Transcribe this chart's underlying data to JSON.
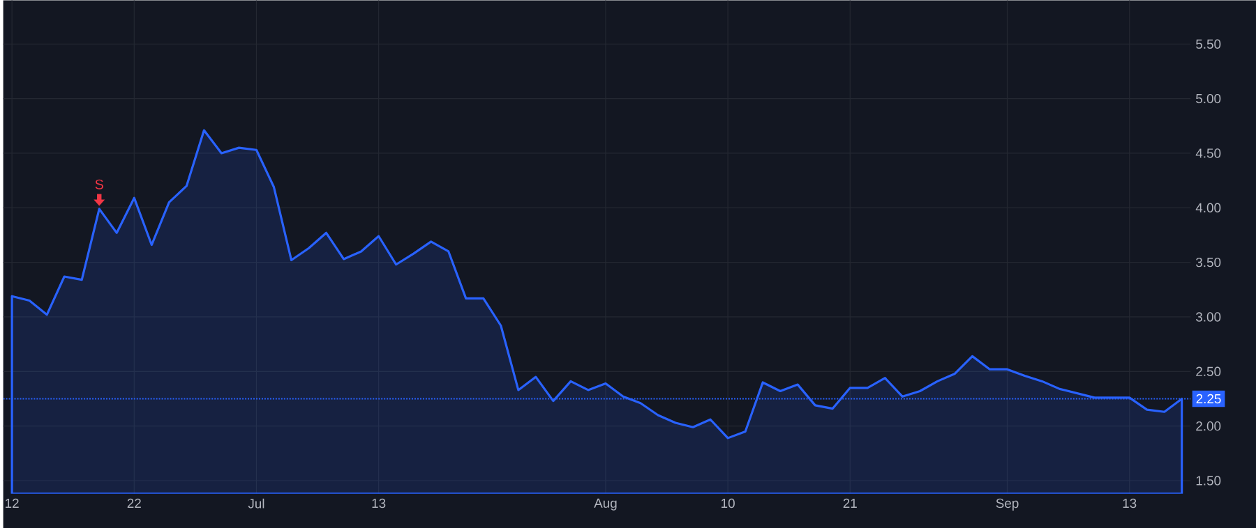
{
  "chart_data": {
    "type": "area",
    "categories": [
      "12",
      null,
      null,
      null,
      null,
      null,
      null,
      "22",
      null,
      null,
      null,
      null,
      null,
      null,
      "Jul",
      null,
      null,
      null,
      null,
      null,
      null,
      "13",
      null,
      null,
      null,
      null,
      null,
      null,
      null,
      null,
      null,
      null,
      null,
      null,
      "Aug",
      null,
      null,
      null,
      null,
      null,
      null,
      "10",
      null,
      null,
      null,
      null,
      null,
      null,
      "21",
      null,
      null,
      null,
      null,
      null,
      null,
      null,
      null,
      "Sep",
      null,
      null,
      null,
      null,
      null,
      null,
      "13",
      null,
      null,
      null
    ],
    "series": [
      {
        "color": "#2962ff",
        "values": [
          3.19,
          3.15,
          3.02,
          3.37,
          3.34,
          3.99,
          3.77,
          4.09,
          3.66,
          4.05,
          4.2,
          4.71,
          4.5,
          4.55,
          4.53,
          4.19,
          3.52,
          3.63,
          3.77,
          3.53,
          3.6,
          3.74,
          3.48,
          3.58,
          3.69,
          3.6,
          3.17,
          3.17,
          2.92,
          2.33,
          2.45,
          2.23,
          2.41,
          2.33,
          2.39,
          2.27,
          2.21,
          2.1,
          2.03,
          1.99,
          2.06,
          1.89,
          1.95,
          2.4,
          2.32,
          2.38,
          2.19,
          2.16,
          2.35,
          2.35,
          2.44,
          2.27,
          2.32,
          2.41,
          2.48,
          2.64,
          2.52,
          2.52,
          2.46,
          2.41,
          2.34,
          2.3,
          2.26,
          2.26,
          2.26,
          2.15,
          2.13,
          2.25
        ]
      }
    ],
    "ylim": [
      1.38,
      5.9
    ],
    "yticks": [
      {
        "value": 1.5,
        "label": "1.50"
      },
      {
        "value": 2,
        "label": "2.00"
      },
      {
        "value": 2.5,
        "label": "2.50"
      },
      {
        "value": 3,
        "label": "3.00"
      },
      {
        "value": 3.5,
        "label": "3.50"
      },
      {
        "value": 4,
        "label": "4.00"
      },
      {
        "value": 4.5,
        "label": "4.50"
      },
      {
        "value": 5,
        "label": "5.00"
      },
      {
        "value": 5.5,
        "label": "5.50"
      }
    ],
    "grid": true,
    "ref_lines": [
      {
        "axis": "y",
        "value": 2.25,
        "label": "2.25",
        "color": "#2962ff",
        "line_style": "dotted"
      }
    ],
    "annotations": [
      {
        "text": "S",
        "y": 3.99
      }
    ]
  }
}
